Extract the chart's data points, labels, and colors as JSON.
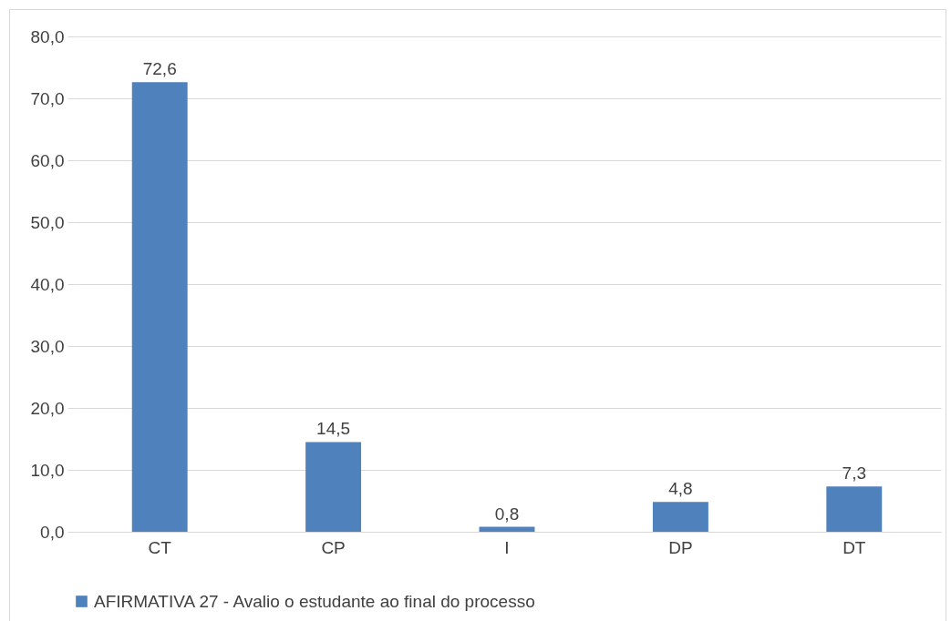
{
  "chart_data": {
    "type": "bar",
    "categories": [
      "CT",
      "CP",
      "I",
      "DP",
      "DT"
    ],
    "series": [
      {
        "name": "AFIRMATIVA 27 - Avalio o estudante ao final do processo",
        "color": "#4f81bd",
        "values": [
          72.6,
          14.5,
          0.8,
          4.8,
          7.3
        ],
        "value_labels": [
          "72,6",
          "14,5",
          "0,8",
          "4,8",
          "7,3"
        ]
      }
    ],
    "ylim": [
      0,
      80
    ],
    "yticks": [
      {
        "value": 0,
        "label": "0,0"
      },
      {
        "value": 10,
        "label": "10,0"
      },
      {
        "value": 20,
        "label": "20,0"
      },
      {
        "value": 30,
        "label": "30,0"
      },
      {
        "value": 40,
        "label": "40,0"
      },
      {
        "value": 50,
        "label": "50,0"
      },
      {
        "value": 60,
        "label": "60,0"
      },
      {
        "value": 70,
        "label": "70,0"
      },
      {
        "value": 80,
        "label": "80,0"
      }
    ],
    "grid": "y",
    "legend": "bottom"
  }
}
